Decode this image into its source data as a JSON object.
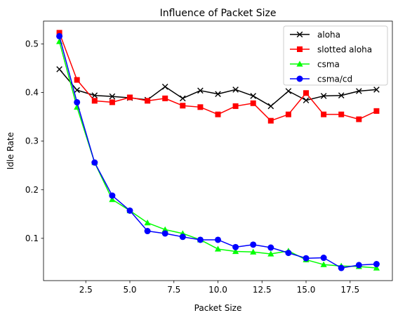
{
  "chart_data": {
    "type": "line",
    "title": "Influence of Packet Size",
    "xlabel": "Packet Size",
    "ylabel": "Idle Rate",
    "xlim": [
      0.1,
      19.9
    ],
    "ylim": [
      0.013,
      0.547
    ],
    "xticks": [
      2.5,
      5.0,
      7.5,
      10.0,
      12.5,
      15.0,
      17.5
    ],
    "xtick_labels": [
      "2.5",
      "5.0",
      "7.5",
      "10.0",
      "12.5",
      "15.0",
      "17.5"
    ],
    "yticks": [
      0.1,
      0.2,
      0.3,
      0.4,
      0.5
    ],
    "ytick_labels": [
      "0.1",
      "0.2",
      "0.3",
      "0.4",
      "0.5"
    ],
    "grid": false,
    "legend_position": "top-right",
    "x": [
      1,
      2,
      3,
      4,
      5,
      6,
      7,
      8,
      9,
      10,
      11,
      12,
      13,
      14,
      15,
      16,
      17,
      18,
      19
    ],
    "series": [
      {
        "name": "aloha",
        "color": "#000000",
        "marker": "x",
        "values": [
          0.448,
          0.405,
          0.394,
          0.392,
          0.389,
          0.385,
          0.412,
          0.388,
          0.404,
          0.397,
          0.406,
          0.393,
          0.372,
          0.403,
          0.384,
          0.393,
          0.394,
          0.403,
          0.406
        ]
      },
      {
        "name": "slotted aloha",
        "color": "#ff0000",
        "marker": "square",
        "values": [
          0.523,
          0.426,
          0.383,
          0.38,
          0.39,
          0.383,
          0.388,
          0.373,
          0.37,
          0.355,
          0.372,
          0.378,
          0.342,
          0.355,
          0.399,
          0.355,
          0.355,
          0.345,
          0.362
        ]
      },
      {
        "name": "csma",
        "color": "#00ff00",
        "marker": "triangle",
        "values": [
          0.505,
          0.37,
          0.256,
          0.18,
          0.157,
          0.132,
          0.118,
          0.11,
          0.097,
          0.078,
          0.073,
          0.072,
          0.068,
          0.074,
          0.056,
          0.046,
          0.043,
          0.042,
          0.039
        ]
      },
      {
        "name": "csma/cd",
        "color": "#0000ff",
        "marker": "circle",
        "values": [
          0.516,
          0.38,
          0.256,
          0.188,
          0.157,
          0.115,
          0.11,
          0.103,
          0.097,
          0.097,
          0.082,
          0.087,
          0.081,
          0.07,
          0.059,
          0.06,
          0.039,
          0.045,
          0.047
        ]
      }
    ]
  }
}
